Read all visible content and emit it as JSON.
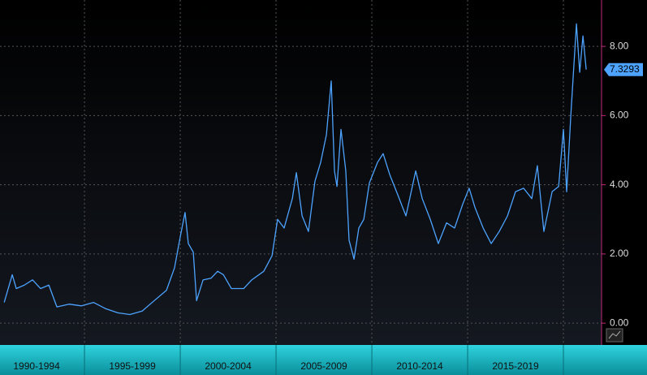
{
  "chart_data": {
    "type": "line",
    "categories": [
      "1990-1994",
      "1995-1999",
      "2000-2004",
      "2005-2009",
      "2010-2014",
      "2015-2019"
    ],
    "band_starts": [
      1990,
      1995,
      2000,
      2005,
      2010,
      2015,
      2020
    ],
    "series": [
      {
        "color": "#4da3ff",
        "x": [
          1990.81,
          1991.23,
          1991.44,
          1991.86,
          1992.29,
          1992.71,
          1993.14,
          1993.56,
          1994.19,
          1994.83,
          1995.47,
          1996.1,
          1996.74,
          1997.37,
          1998.01,
          1998.64,
          1999.28,
          1999.7,
          2000.0,
          2000.25,
          2000.42,
          2000.68,
          2000.85,
          2001.19,
          2001.61,
          2001.95,
          2002.25,
          2002.67,
          2003.31,
          2003.73,
          2004.36,
          2004.79,
          2005.08,
          2005.42,
          2005.85,
          2006.06,
          2006.36,
          2006.69,
          2007.03,
          2007.33,
          2007.63,
          2007.88,
          2008.05,
          2008.18,
          2008.39,
          2008.64,
          2008.81,
          2009.07,
          2009.32,
          2009.58,
          2009.87,
          2010.3,
          2010.59,
          2010.93,
          2011.36,
          2011.78,
          2012.29,
          2012.63,
          2013.05,
          2013.47,
          2013.9,
          2014.32,
          2014.75,
          2015.08,
          2015.38,
          2015.81,
          2016.23,
          2016.65,
          2017.08,
          2017.5,
          2017.92,
          2018.35,
          2018.64,
          2018.98,
          2019.41,
          2019.75,
          2020.0,
          2020.17,
          2020.38,
          2020.68,
          2020.85,
          2021.02,
          2021.19
        ],
        "values": [
          0.6,
          1.4,
          1.0,
          1.1,
          1.25,
          1.0,
          1.1,
          0.47,
          0.55,
          0.5,
          0.6,
          0.42,
          0.3,
          0.25,
          0.35,
          0.65,
          0.95,
          1.6,
          2.5,
          3.2,
          2.3,
          2.05,
          0.65,
          1.25,
          1.3,
          1.5,
          1.4,
          1.0,
          1.0,
          1.25,
          1.5,
          1.95,
          3.0,
          2.75,
          3.6,
          4.35,
          3.1,
          2.65,
          4.1,
          4.65,
          5.45,
          7.0,
          4.4,
          3.95,
          5.6,
          4.4,
          2.4,
          1.85,
          2.75,
          3.0,
          4.05,
          4.65,
          4.9,
          4.3,
          3.7,
          3.1,
          4.4,
          3.6,
          3.0,
          2.3,
          2.9,
          2.75,
          3.45,
          3.9,
          3.35,
          2.75,
          2.3,
          2.65,
          3.1,
          3.8,
          3.9,
          3.6,
          4.55,
          2.65,
          3.8,
          3.95,
          5.6,
          3.8,
          5.95,
          8.65,
          7.25,
          8.3,
          7.3293
        ],
        "value_labels": {
          "82": "7.3293"
        }
      }
    ],
    "xlim": [
      1990.59,
      2021.99
    ],
    "ylim": [
      -0.63,
      9.34
    ],
    "yticks": [
      {
        "value": 0,
        "label": "0.00"
      },
      {
        "value": 2,
        "label": "2.00"
      },
      {
        "value": 4,
        "label": "4.00"
      },
      {
        "value": 6,
        "label": "6.00"
      },
      {
        "value": 8,
        "label": "8.00"
      }
    ],
    "grid": true
  }
}
